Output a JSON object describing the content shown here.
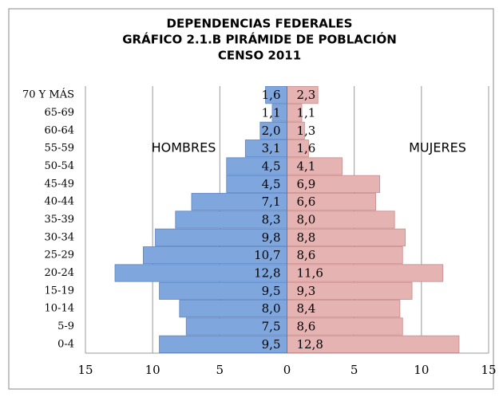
{
  "chart_data": {
    "type": "pyramid",
    "title": [
      "DEPENDENCIAS FEDERALES",
      "GRÁFICO 2.1.B PIRÁMIDE DE POBLACIÓN",
      "CENSO 2011"
    ],
    "categories": [
      "70 Y MÁS",
      "65-69",
      "60-64",
      "55-59",
      "50-54",
      "45-49",
      "40-44",
      "35-39",
      "30-34",
      "25-29",
      "20-24",
      "15-19",
      "10-14",
      "5-9",
      "0-4"
    ],
    "series": [
      {
        "name": "HOMBRES",
        "color": "#7fa7de",
        "side": "left",
        "values": [
          1.6,
          1.1,
          2.0,
          3.1,
          4.5,
          4.5,
          7.1,
          8.3,
          9.8,
          10.7,
          12.8,
          9.5,
          8.0,
          7.5,
          9.5
        ],
        "value_labels": [
          "1,6",
          "1,1",
          "2,0",
          "3,1",
          "4,5",
          "4,5",
          "7,1",
          "8,3",
          "9,8",
          "10,7",
          "12,8",
          "9,5",
          "8,0",
          "7,5",
          "9,5"
        ]
      },
      {
        "name": "MUJERES",
        "color": "#e6b3b3",
        "side": "right",
        "values": [
          2.3,
          1.1,
          1.3,
          1.6,
          4.1,
          6.9,
          6.6,
          8.0,
          8.8,
          8.6,
          11.6,
          9.3,
          8.4,
          8.6,
          12.8
        ],
        "value_labels": [
          "2,3",
          "1,1",
          "1,3",
          "1,6",
          "4,1",
          "6,9",
          "6,6",
          "8,0",
          "8,8",
          "8,6",
          "11,6",
          "9,3",
          "8,4",
          "8,6",
          "12,8"
        ]
      }
    ],
    "xlim": [
      -15,
      15
    ],
    "xticks": [
      {
        "value": -15,
        "label": "15"
      },
      {
        "value": -10,
        "label": "10"
      },
      {
        "value": -5,
        "label": "5"
      },
      0,
      5,
      10,
      15
    ],
    "grid": true
  }
}
